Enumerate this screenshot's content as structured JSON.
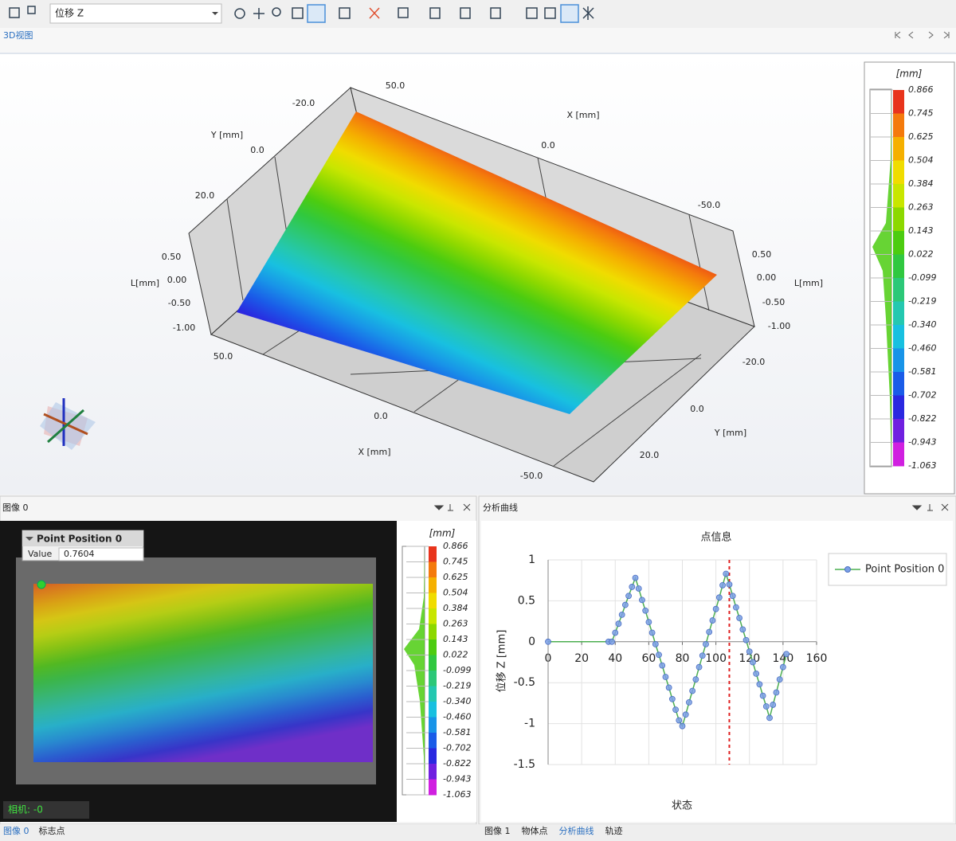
{
  "toolbar": {
    "field": "位移 Z"
  },
  "view_tab": "3D视图",
  "view3d": {
    "axis_labels": [
      "50.0",
      "-20.0",
      "Y [mm]",
      "0.0",
      "20.0",
      "X [mm]",
      "0.0",
      "-50.0",
      "0.50",
      "L[mm]",
      "0.00",
      "-0.50",
      "-1.00",
      "50.0",
      "0.0",
      "X [mm]",
      "-50.0",
      "0.50",
      "0.00",
      "L[mm]",
      "-0.50",
      "-1.00",
      "-20.0",
      "0.0",
      "Y [mm]",
      "20.0"
    ]
  },
  "colorbar": {
    "unit": "[mm]",
    "labels": [
      "0.866",
      "0.745",
      "0.625",
      "0.504",
      "0.384",
      "0.263",
      "0.143",
      "0.022",
      "-0.099",
      "-0.219",
      "-0.340",
      "-0.460",
      "-0.581",
      "-0.702",
      "-0.822",
      "-0.943",
      "-1.063"
    ],
    "colors": [
      "#e8341c",
      "#f47a0c",
      "#f5b000",
      "#f0dc00",
      "#c8e600",
      "#8cd800",
      "#4ccc10",
      "#30c840",
      "#2cc878",
      "#24c8b0",
      "#18c0e0",
      "#1894e8",
      "#1a5ce8",
      "#2a28e0",
      "#7020e0",
      "#d020e0"
    ]
  },
  "image_panel": {
    "title": "图像 0",
    "tooltip": {
      "title": "Point Position 0",
      "key": "Value",
      "value": "0.7604"
    },
    "camera": "相机: -0"
  },
  "chart_panel": {
    "title": "分析曲线"
  },
  "chart_data": {
    "type": "line",
    "title": "点信息",
    "x_label": "状态",
    "y_label": "位移 Z [mm]",
    "x": [
      0,
      36,
      38,
      40,
      42,
      44,
      46,
      48,
      50,
      52,
      54,
      56,
      58,
      60,
      62,
      64,
      66,
      68,
      70,
      72,
      74,
      76,
      78,
      80,
      82,
      84,
      86,
      88,
      90,
      92,
      94,
      96,
      98,
      100,
      102,
      104,
      106,
      108,
      110,
      112,
      114,
      116,
      118,
      120,
      122,
      124,
      126,
      128,
      130,
      132,
      134,
      136,
      138,
      140,
      142
    ],
    "series": [
      {
        "name": "Point Position 0",
        "color": "#7b9fe6",
        "line_color": "#4caf50",
        "values": [
          0,
          0,
          0,
          0.11,
          0.22,
          0.33,
          0.45,
          0.56,
          0.67,
          0.78,
          0.65,
          0.51,
          0.38,
          0.24,
          0.11,
          -0.03,
          -0.16,
          -0.29,
          -0.43,
          -0.56,
          -0.7,
          -0.83,
          -0.96,
          -1.03,
          -0.89,
          -0.74,
          -0.6,
          -0.46,
          -0.31,
          -0.17,
          -0.03,
          0.12,
          0.26,
          0.4,
          0.54,
          0.69,
          0.83,
          0.7,
          0.56,
          0.42,
          0.29,
          0.15,
          0.02,
          -0.12,
          -0.25,
          -0.39,
          -0.52,
          -0.66,
          -0.79,
          -0.93,
          -0.77,
          -0.62,
          -0.46,
          -0.31,
          -0.15
        ]
      }
    ],
    "xlim": [
      0,
      160
    ],
    "xticks": [
      0,
      20,
      40,
      60,
      80,
      100,
      120,
      140,
      160
    ],
    "ylim": [
      -1.5,
      1
    ],
    "yticks": [
      -1.5,
      -1,
      -0.5,
      0,
      0.5,
      1
    ],
    "grid": true,
    "legend": "top-right",
    "cursor": {
      "x": 108,
      "color": "#e02020"
    }
  },
  "bottom_tabs_left": [
    "图像 0",
    "标志点"
  ],
  "bottom_tabs_right": [
    "图像 1",
    "物体点",
    "分析曲线",
    "轨迹"
  ]
}
